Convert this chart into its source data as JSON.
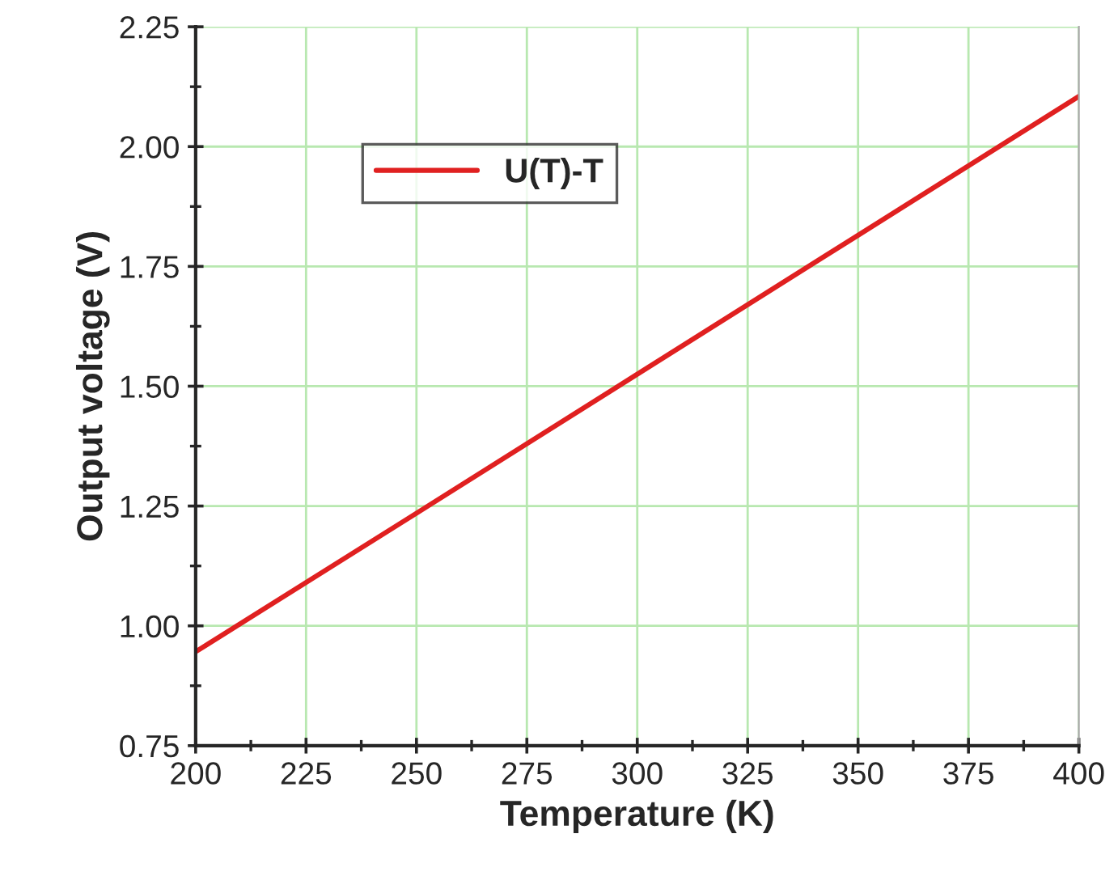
{
  "chart_data": {
    "type": "line",
    "xlabel": "Temperature (K)",
    "ylabel": "Output voltage (V)",
    "x": [
      200,
      250,
      300,
      350,
      400
    ],
    "series": [
      {
        "name": "U(T)-T",
        "color": "#e02020",
        "values": [
          0.946,
          1.235,
          1.525,
          1.815,
          2.105
        ]
      }
    ],
    "xlim": [
      200,
      400
    ],
    "xticks": [
      200,
      225,
      250,
      275,
      300,
      325,
      350,
      375,
      400
    ],
    "ylim": [
      0.75,
      2.25
    ],
    "yticks": [
      0.75,
      {
        "value": 1,
        "label": "1.00"
      },
      1.25,
      {
        "value": 1.5,
        "label": "1.50"
      },
      1.75,
      {
        "value": 2,
        "label": "2.00"
      },
      2.25
    ],
    "grid": true,
    "legend": "top left",
    "marker": "none",
    "line_style": "solid"
  }
}
